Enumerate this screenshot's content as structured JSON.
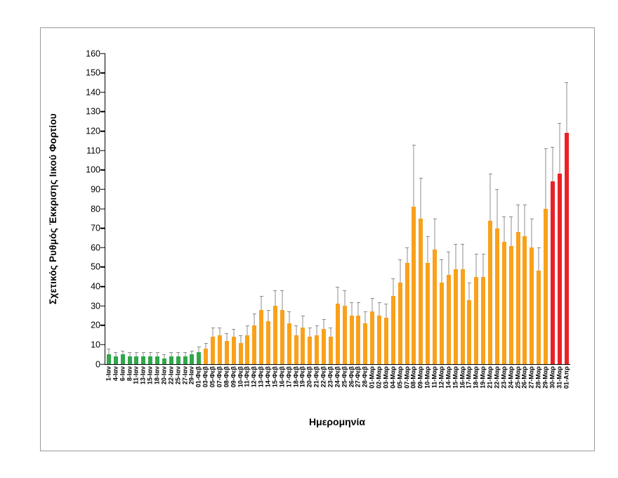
{
  "chart_data": {
    "type": "bar",
    "title": "",
    "ylabel": "Σχετικός Ρυθμός Έκκρισης Ιικού Φορτίου",
    "xlabel": "Ημερομηνία",
    "ylim": [
      0,
      160
    ],
    "yticks": [
      0,
      10,
      20,
      30,
      40,
      50,
      60,
      70,
      80,
      90,
      100,
      110,
      120,
      130,
      140,
      150,
      160
    ],
    "grid": false,
    "legend": "none",
    "error_bars": true,
    "colors": {
      "green": "#2fa84a",
      "orange": "#f9a11b",
      "red": "#ea2127",
      "error_bar": "#8c8c8c",
      "axis": "#000000"
    },
    "bars": [
      {
        "label": "1-Ιαν",
        "value": 5,
        "error": 3,
        "group": "green"
      },
      {
        "label": "4-Ιαν",
        "value": 4,
        "error": 2,
        "group": "green"
      },
      {
        "label": "6-Ιαν",
        "value": 5,
        "error": 2,
        "group": "green"
      },
      {
        "label": "8-Ιαν",
        "value": 4,
        "error": 2,
        "group": "green"
      },
      {
        "label": "11-Ιαν",
        "value": 4,
        "error": 2,
        "group": "green"
      },
      {
        "label": "13-Ιαν",
        "value": 4,
        "error": 2,
        "group": "green"
      },
      {
        "label": "15-Ιαν",
        "value": 4,
        "error": 2,
        "group": "green"
      },
      {
        "label": "18-Ιαν",
        "value": 4,
        "error": 2,
        "group": "green"
      },
      {
        "label": "20-Ιαν",
        "value": 3,
        "error": 2,
        "group": "green"
      },
      {
        "label": "22-Ιαν",
        "value": 4,
        "error": 2,
        "group": "green"
      },
      {
        "label": "25-Ιαν",
        "value": 4,
        "error": 2,
        "group": "green"
      },
      {
        "label": "27-Ιαν",
        "value": 4,
        "error": 2,
        "group": "green"
      },
      {
        "label": "29-Ιαν",
        "value": 5,
        "error": 2,
        "group": "green"
      },
      {
        "label": "01-Φεβ",
        "value": 6,
        "error": 3,
        "group": "green"
      },
      {
        "label": "03-Φεβ",
        "value": 8,
        "error": 3,
        "group": "orange"
      },
      {
        "label": "05-Φεβ",
        "value": 14,
        "error": 5,
        "group": "orange"
      },
      {
        "label": "07-Φεβ",
        "value": 15,
        "error": 4,
        "group": "orange"
      },
      {
        "label": "08-Φεβ",
        "value": 12,
        "error": 4,
        "group": "orange"
      },
      {
        "label": "09-Φεβ",
        "value": 14,
        "error": 4,
        "group": "orange"
      },
      {
        "label": "10-Φεβ",
        "value": 11,
        "error": 4,
        "group": "orange"
      },
      {
        "label": "11-Φεβ",
        "value": 15,
        "error": 5,
        "group": "orange"
      },
      {
        "label": "12-Φεβ",
        "value": 20,
        "error": 6,
        "group": "orange"
      },
      {
        "label": "13-Φεβ",
        "value": 28,
        "error": 7,
        "group": "orange"
      },
      {
        "label": "14-Φεβ",
        "value": 22,
        "error": 6,
        "group": "orange"
      },
      {
        "label": "15-Φεβ",
        "value": 30,
        "error": 8,
        "group": "orange"
      },
      {
        "label": "16-Φεβ",
        "value": 28,
        "error": 10,
        "group": "orange"
      },
      {
        "label": "17-Φεβ",
        "value": 21,
        "error": 6,
        "group": "orange"
      },
      {
        "label": "18-Φεβ",
        "value": 15,
        "error": 5,
        "group": "orange"
      },
      {
        "label": "19-Φεβ",
        "value": 19,
        "error": 6,
        "group": "orange"
      },
      {
        "label": "20-Φεβ",
        "value": 14,
        "error": 5,
        "group": "orange"
      },
      {
        "label": "21-Φεβ",
        "value": 15,
        "error": 5,
        "group": "orange"
      },
      {
        "label": "22-Φεβ",
        "value": 18,
        "error": 5,
        "group": "orange"
      },
      {
        "label": "23-Φεβ",
        "value": 14,
        "error": 5,
        "group": "orange"
      },
      {
        "label": "24-Φεβ",
        "value": 31,
        "error": 9,
        "group": "orange"
      },
      {
        "label": "25-Φεβ",
        "value": 30,
        "error": 8,
        "group": "orange"
      },
      {
        "label": "26-Φεβ",
        "value": 25,
        "error": 7,
        "group": "orange"
      },
      {
        "label": "27-Φεβ",
        "value": 25,
        "error": 7,
        "group": "orange"
      },
      {
        "label": "28-Φεβ",
        "value": 21,
        "error": 6,
        "group": "orange"
      },
      {
        "label": "01-Μαρ",
        "value": 27,
        "error": 7,
        "group": "orange"
      },
      {
        "label": "02-Μαρ",
        "value": 25,
        "error": 7,
        "group": "orange"
      },
      {
        "label": "03-Μαρ",
        "value": 24,
        "error": 7,
        "group": "orange"
      },
      {
        "label": "04-Μαρ",
        "value": 35,
        "error": 9,
        "group": "orange"
      },
      {
        "label": "05-Μαρ",
        "value": 42,
        "error": 12,
        "group": "orange"
      },
      {
        "label": "07-Μαρ",
        "value": 52,
        "error": 8,
        "group": "orange"
      },
      {
        "label": "08-Μαρ",
        "value": 81,
        "error": 32,
        "group": "orange"
      },
      {
        "label": "09-Μαρ",
        "value": 75,
        "error": 21,
        "group": "orange"
      },
      {
        "label": "10-Μαρ",
        "value": 52,
        "error": 14,
        "group": "orange"
      },
      {
        "label": "11-Μαρ",
        "value": 59,
        "error": 16,
        "group": "orange"
      },
      {
        "label": "12-Μαρ",
        "value": 42,
        "error": 12,
        "group": "orange"
      },
      {
        "label": "14-Μαρ",
        "value": 46,
        "error": 12,
        "group": "orange"
      },
      {
        "label": "15-Μαρ",
        "value": 49,
        "error": 13,
        "group": "orange"
      },
      {
        "label": "16-Μαρ",
        "value": 49,
        "error": 13,
        "group": "orange"
      },
      {
        "label": "17-Μαρ",
        "value": 33,
        "error": 9,
        "group": "orange"
      },
      {
        "label": "18-Μαρ",
        "value": 45,
        "error": 12,
        "group": "orange"
      },
      {
        "label": "19-Μαρ",
        "value": 45,
        "error": 12,
        "group": "orange"
      },
      {
        "label": "21-Μαρ",
        "value": 74,
        "error": 24,
        "group": "orange"
      },
      {
        "label": "22-Μαρ",
        "value": 70,
        "error": 20,
        "group": "orange"
      },
      {
        "label": "23-Μαρ",
        "value": 63,
        "error": 13,
        "group": "orange"
      },
      {
        "label": "24-Μαρ",
        "value": 61,
        "error": 15,
        "group": "orange"
      },
      {
        "label": "25-Μαρ",
        "value": 68,
        "error": 14,
        "group": "orange"
      },
      {
        "label": "26-Μαρ",
        "value": 66,
        "error": 16,
        "group": "orange"
      },
      {
        "label": "27-Μαρ",
        "value": 60,
        "error": 15,
        "group": "orange"
      },
      {
        "label": "28-Μαρ",
        "value": 48,
        "error": 12,
        "group": "orange"
      },
      {
        "label": "29-Μαρ",
        "value": 80,
        "error": 31,
        "group": "orange"
      },
      {
        "label": "30-Μαρ",
        "value": 94,
        "error": 18,
        "group": "red"
      },
      {
        "label": "31-Μαρ",
        "value": 98,
        "error": 26,
        "group": "red"
      },
      {
        "label": "01-Απρ",
        "value": 119,
        "error": 26,
        "group": "red"
      }
    ]
  }
}
